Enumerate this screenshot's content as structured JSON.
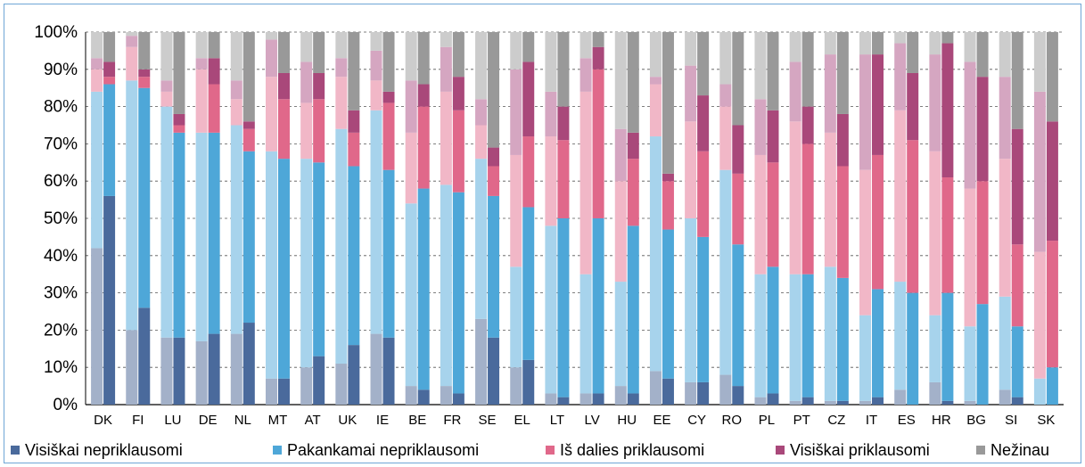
{
  "chart_data": {
    "type": "bar",
    "stacked": true,
    "paired_bars": true,
    "y_axis": {
      "min": 0,
      "max": 100,
      "step": 10,
      "tick_suffix": "%"
    },
    "grid": true,
    "legend_position": "bottom",
    "categories": [
      "DK",
      "FI",
      "LU",
      "DE",
      "NL",
      "MT",
      "AT",
      "UK",
      "IE",
      "BE",
      "FR",
      "SE",
      "EL",
      "LT",
      "LV",
      "HU",
      "EE",
      "CY",
      "RO",
      "PL",
      "PT",
      "CZ",
      "IT",
      "ES",
      "HR",
      "BG",
      "SI",
      "SK"
    ],
    "series": [
      {
        "name": "Visiškai nepriklausomi",
        "color": "#4a6a9c",
        "light_color": "#a3b1c9",
        "values_left": [
          42,
          20,
          18,
          17,
          19,
          7,
          10,
          11,
          19,
          5,
          5,
          23,
          10,
          3,
          3,
          5,
          9,
          6,
          8,
          2,
          1,
          1,
          1,
          4,
          6,
          1,
          4,
          0
        ],
        "values_right": [
          56,
          26,
          18,
          19,
          22,
          7,
          13,
          16,
          18,
          4,
          3,
          18,
          12,
          2,
          3,
          3,
          7,
          6,
          5,
          3,
          2,
          1,
          2,
          0,
          1,
          0,
          2,
          0
        ]
      },
      {
        "name": "Pakankamai nepriklausomi",
        "color": "#4ea7d8",
        "light_color": "#a7d3ec",
        "values_left": [
          42,
          67,
          62,
          56,
          56,
          61,
          56,
          63,
          60,
          49,
          54,
          43,
          27,
          45,
          32,
          28,
          63,
          44,
          55,
          33,
          34,
          36,
          23,
          29,
          18,
          20,
          25,
          7
        ],
        "values_right": [
          30,
          59,
          55,
          54,
          46,
          59,
          52,
          48,
          45,
          54,
          54,
          38,
          41,
          48,
          47,
          45,
          40,
          39,
          38,
          34,
          33,
          33,
          29,
          30,
          29,
          27,
          19,
          10
        ]
      },
      {
        "name": "Iš dalies priklausomi",
        "color": "#e0688a",
        "light_color": "#f1b7c7",
        "values_left": [
          6,
          9,
          4,
          17,
          7,
          20,
          15,
          14,
          8,
          19,
          25,
          9,
          30,
          24,
          49,
          27,
          14,
          26,
          17,
          32,
          41,
          36,
          39,
          46,
          44,
          37,
          37,
          34
        ],
        "values_right": [
          2,
          3,
          2,
          13,
          6,
          16,
          17,
          9,
          18,
          22,
          22,
          8,
          19,
          21,
          40,
          18,
          13,
          23,
          19,
          28,
          35,
          30,
          36,
          41,
          31,
          33,
          22,
          34
        ]
      },
      {
        "name": "Visiškai priklausomi",
        "color": "#a9487a",
        "light_color": "#d5a6c1",
        "values_left": [
          3,
          3,
          3,
          3,
          5,
          10,
          11,
          5,
          8,
          14,
          12,
          7,
          23,
          12,
          9,
          14,
          2,
          15,
          6,
          15,
          16,
          21,
          31,
          18,
          26,
          34,
          22,
          43
        ],
        "values_right": [
          4,
          2,
          3,
          7,
          2,
          7,
          7,
          6,
          3,
          6,
          9,
          5,
          20,
          9,
          6,
          7,
          2,
          15,
          13,
          14,
          10,
          14,
          27,
          18,
          36,
          28,
          31,
          32
        ]
      },
      {
        "name": "Nežinau",
        "color": "#999999",
        "light_color": "#cccccc",
        "values_left": [
          7,
          1,
          13,
          7,
          13,
          2,
          8,
          7,
          5,
          13,
          4,
          18,
          10,
          16,
          7,
          26,
          12,
          9,
          14,
          18,
          8,
          6,
          6,
          3,
          6,
          8,
          12,
          16
        ],
        "values_right": [
          8,
          10,
          22,
          7,
          24,
          11,
          11,
          21,
          16,
          14,
          12,
          31,
          8,
          20,
          4,
          27,
          38,
          17,
          25,
          21,
          20,
          22,
          6,
          11,
          3,
          12,
          26,
          24
        ]
      }
    ]
  }
}
